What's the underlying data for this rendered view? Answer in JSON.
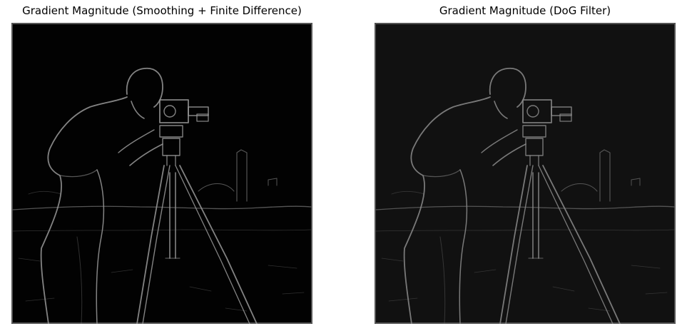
{
  "figure": {
    "panels": [
      {
        "title": "Gradient Magnitude (Smoothing + Finite Difference)",
        "image_description_icon": "cameraman-edge-map",
        "background_color": "#020202",
        "edge_color": "#9a9a9a"
      },
      {
        "title": "Gradient Magnitude (DoG Filter)",
        "image_description_icon": "cameraman-edge-map",
        "background_color": "#111111",
        "edge_color": "#8c8c8c"
      }
    ]
  }
}
